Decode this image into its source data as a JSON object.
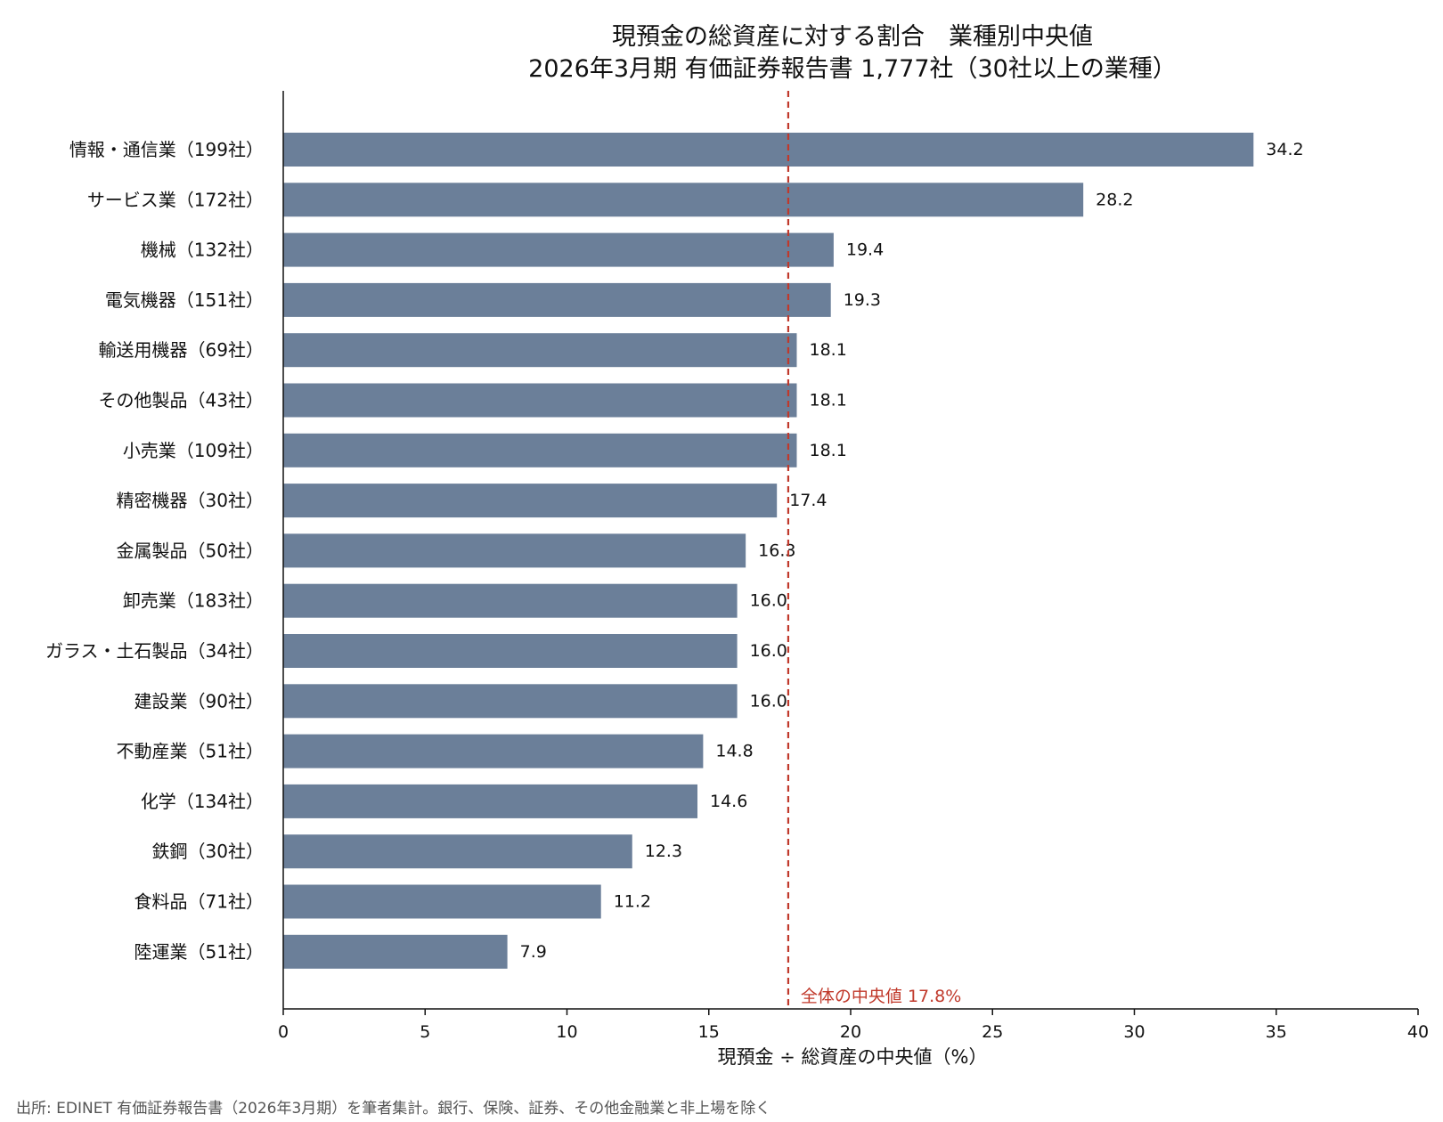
{
  "chart_data": {
    "type": "bar",
    "orientation": "horizontal",
    "title_line1": "現預金の総資産に対する割合　業種別中央値",
    "title_line2": "2026年3月期 有価証券報告書 1,777社（30社以上の業種）",
    "xlabel": "現預金 ÷ 総資産の中央値（%）",
    "xlim": [
      0,
      40
    ],
    "xticks": [
      "0",
      "5",
      "10",
      "15",
      "20",
      "25",
      "30",
      "35",
      "40"
    ],
    "categories": [
      "情報・通信業（199社）",
      "サービス業（172社）",
      "機械（132社）",
      "電気機器（151社）",
      "輸送用機器（69社）",
      "その他製品（43社）",
      "小売業（109社）",
      "精密機器（30社）",
      "金属製品（50社）",
      "卸売業（183社）",
      "ガラス・土石製品（34社）",
      "建設業（90社）",
      "不動産業（51社）",
      "化学（134社）",
      "鉄鋼（30社）",
      "食料品（71社）",
      "陸運業（51社）"
    ],
    "values": [
      34.2,
      28.2,
      19.4,
      19.3,
      18.1,
      18.1,
      18.1,
      17.4,
      16.3,
      16.0,
      16.0,
      16.0,
      14.8,
      14.6,
      12.3,
      11.2,
      7.9
    ],
    "value_labels": [
      "34.2",
      "28.2",
      "19.4",
      "19.3",
      "18.1",
      "18.1",
      "18.1",
      "17.4",
      "16.3",
      "16.0",
      "16.0",
      "16.0",
      "14.8",
      "14.6",
      "12.3",
      "11.2",
      "7.9"
    ],
    "reference_line": {
      "value": 17.8,
      "label": "全体の中央値 17.8%",
      "color": "#c0392b",
      "style": "dashed"
    },
    "bar_color": "#6b7f99",
    "grid": false,
    "source": "出所: EDINET 有価証券報告書（2026年3月期）を筆者集計。銀行、保険、証券、その他金融業と非上場を除く"
  }
}
